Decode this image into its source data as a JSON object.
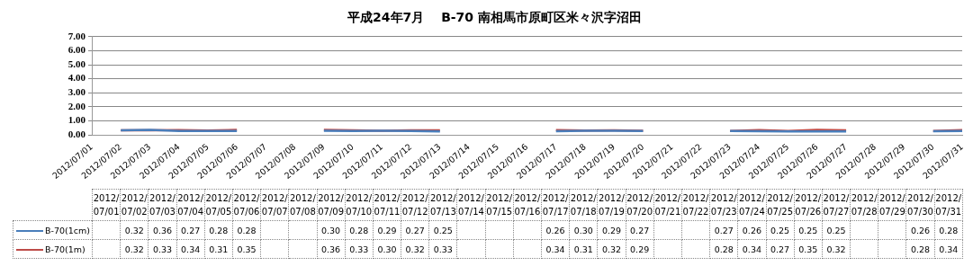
{
  "chart_data": {
    "type": "line",
    "title": "平成24年7月　 B-70 南相馬市原町区米々沢字沼田",
    "categories": [
      "2012/07/01",
      "2012/07/02",
      "2012/07/03",
      "2012/07/04",
      "2012/07/05",
      "2012/07/06",
      "2012/07/07",
      "2012/07/08",
      "2012/07/09",
      "2012/07/10",
      "2012/07/11",
      "2012/07/12",
      "2012/07/13",
      "2012/07/14",
      "2012/07/15",
      "2012/07/16",
      "2012/07/17",
      "2012/07/18",
      "2012/07/19",
      "2012/07/20",
      "2012/07/21",
      "2012/07/22",
      "2012/07/23",
      "2012/07/24",
      "2012/07/25",
      "2012/07/26",
      "2012/07/27",
      "2012/07/28",
      "2012/07/29",
      "2012/07/30",
      "2012/07/31"
    ],
    "series": [
      {
        "name": "B-70(1cm)",
        "color": "#4a7ebb",
        "values": [
          null,
          0.32,
          0.36,
          0.27,
          0.28,
          0.28,
          null,
          null,
          0.3,
          0.28,
          0.29,
          0.27,
          0.25,
          null,
          null,
          null,
          0.26,
          0.3,
          0.29,
          0.27,
          null,
          null,
          0.27,
          0.26,
          0.25,
          0.25,
          0.25,
          null,
          null,
          0.26,
          0.28
        ],
        "value_labels": [
          null,
          "0.32",
          "0.36",
          "0.27",
          "0.28",
          "0.28",
          null,
          null,
          "0.30",
          "0.28",
          "0.29",
          "0.27",
          "0.25",
          null,
          null,
          null,
          "0.26",
          "0.30",
          "0.29",
          "0.27",
          null,
          null,
          "0.27",
          "0.26",
          "0.25",
          "0.25",
          "0.25",
          null,
          null,
          "0.26",
          "0.28"
        ]
      },
      {
        "name": "B-70(1m)",
        "color": "#be4b48",
        "values": [
          null,
          0.32,
          0.33,
          0.34,
          0.31,
          0.35,
          null,
          null,
          0.36,
          0.33,
          0.3,
          0.32,
          0.33,
          null,
          null,
          null,
          0.34,
          0.31,
          0.32,
          0.29,
          null,
          null,
          0.28,
          0.34,
          0.27,
          0.35,
          0.32,
          null,
          null,
          0.28,
          0.34
        ],
        "value_labels": [
          null,
          "0.32",
          "0.33",
          "0.34",
          "0.31",
          "0.35",
          null,
          null,
          "0.36",
          "0.33",
          "0.30",
          "0.32",
          "0.33",
          null,
          null,
          null,
          "0.34",
          "0.31",
          "0.32",
          "0.29",
          null,
          null,
          "0.28",
          "0.34",
          "0.27",
          "0.35",
          "0.32",
          null,
          null,
          "0.28",
          "0.34"
        ]
      }
    ],
    "ylim": [
      0,
      7
    ],
    "yticks": [
      {
        "value": 0,
        "label": "0.00"
      },
      {
        "value": 1,
        "label": "1.00"
      },
      {
        "value": 2,
        "label": "2.00"
      },
      {
        "value": 3,
        "label": "3.00"
      },
      {
        "value": 4,
        "label": "4.00"
      },
      {
        "value": 5,
        "label": "5.00"
      },
      {
        "value": 6,
        "label": "6.00"
      },
      {
        "value": 7,
        "label": "7.00"
      }
    ],
    "grid": "y",
    "legend": "bottom left",
    "marker": "none",
    "line_style": "solid"
  }
}
